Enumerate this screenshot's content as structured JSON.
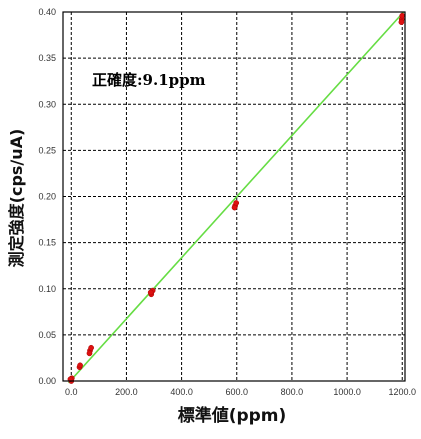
{
  "chart_data": {
    "type": "scatter",
    "xlabel": "標準値(ppm)",
    "ylabel": "測定強度(cps/uA)",
    "annotation": "正確度:9.1ppm",
    "xlim": [
      -30,
      1210
    ],
    "ylim": [
      0,
      0.4
    ],
    "xticks": [
      "0.0",
      "200.0",
      "400.0",
      "600.0",
      "800.0",
      "1000.0",
      "1200.0"
    ],
    "yticks": [
      "0.00",
      "0.05",
      "0.10",
      "0.15",
      "0.20",
      "0.25",
      "0.30",
      "0.35",
      "0.40"
    ],
    "grid": true,
    "series": [
      {
        "points": [
          {
            "x": 0,
            "y": 0.0
          },
          {
            "x": 2,
            "y": 0.003
          },
          {
            "x": -3,
            "y": 0.002
          },
          {
            "x": 30,
            "y": 0.015
          },
          {
            "x": 32,
            "y": 0.017
          },
          {
            "x": 68,
            "y": 0.033
          },
          {
            "x": 72,
            "y": 0.036
          },
          {
            "x": 66,
            "y": 0.03
          },
          {
            "x": 290,
            "y": 0.094
          },
          {
            "x": 295,
            "y": 0.098
          },
          {
            "x": 288,
            "y": 0.096
          },
          {
            "x": 594,
            "y": 0.19
          },
          {
            "x": 598,
            "y": 0.193
          },
          {
            "x": 592,
            "y": 0.188
          },
          {
            "x": 1198,
            "y": 0.392
          },
          {
            "x": 1200,
            "y": 0.396
          },
          {
            "x": 1197,
            "y": 0.389
          }
        ]
      }
    ],
    "fit_line": {
      "x": [
        -10,
        1205
      ],
      "y": [
        -0.002,
        0.4
      ]
    },
    "colors": {
      "points": "#dd1111",
      "fit_line": "#66dd44",
      "grid": "#000000",
      "axes": "#000000"
    }
  }
}
